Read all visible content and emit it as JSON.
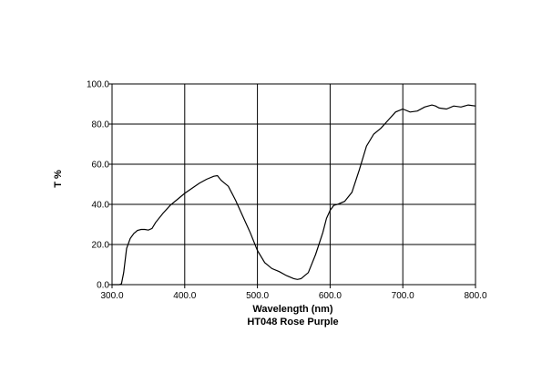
{
  "chart_data": {
    "type": "line",
    "xlabel": "Wavelength (nm)",
    "ylabel": "T %",
    "caption": "HT048 Rose Purple",
    "xlim": [
      300,
      800
    ],
    "ylim": [
      0,
      100
    ],
    "xticks": [
      300,
      400,
      500,
      600,
      700,
      800
    ],
    "yticks": [
      0,
      20,
      40,
      60,
      80,
      100
    ],
    "xtick_labels": [
      "300.0",
      "400.0",
      "500.0",
      "600.0",
      "700.0",
      "800.0"
    ],
    "ytick_labels": [
      "0.0",
      "20.0",
      "40.0",
      "60.0",
      "80.0",
      "100.0"
    ],
    "grid": true,
    "series": [
      {
        "x": [
          300,
          310,
          313,
          316,
          320,
          325,
          330,
          335,
          340,
          345,
          350,
          355,
          360,
          370,
          380,
          390,
          400,
          410,
          420,
          430,
          440,
          445,
          450,
          460,
          470,
          480,
          490,
          500,
          510,
          520,
          530,
          540,
          550,
          555,
          560,
          570,
          580,
          590,
          595,
          600,
          605,
          610,
          620,
          630,
          640,
          650,
          660,
          670,
          680,
          690,
          700,
          710,
          720,
          730,
          740,
          745,
          750,
          760,
          770,
          780,
          790,
          800
        ],
        "y": [
          0,
          0,
          0.5,
          6,
          18,
          23,
          25.5,
          27,
          27.5,
          27.5,
          27.2,
          28,
          31,
          35.5,
          39.5,
          42.5,
          45.5,
          48,
          50.5,
          52.5,
          54,
          54.3,
          52,
          49,
          42,
          34,
          26,
          17,
          11,
          8,
          6.5,
          4.5,
          3,
          2.6,
          3,
          6,
          15,
          26,
          33,
          37,
          39.5,
          40,
          41.5,
          46,
          57,
          69,
          75,
          78,
          82,
          86,
          87.5,
          86,
          86.5,
          88.5,
          89.5,
          89,
          88,
          87.5,
          89,
          88.5,
          89.5,
          89
        ]
      }
    ]
  }
}
